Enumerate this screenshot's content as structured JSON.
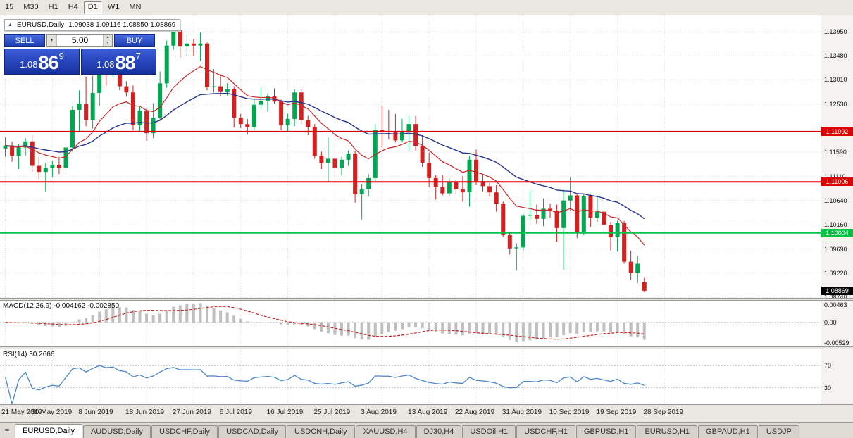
{
  "toolbar": {
    "timeframes": [
      "15",
      "M30",
      "H1",
      "H4",
      "D1",
      "W1",
      "MN"
    ],
    "active_timeframe": "D1"
  },
  "chart_header": {
    "symbol": "EURUSD,Daily",
    "ohlc": "1.09038 1.09116 1.08850 1.08869"
  },
  "trade_panel": {
    "sell_label": "SELL",
    "buy_label": "BUY",
    "volume": "5.00",
    "sell_price": {
      "big": "1.08",
      "mid": "86",
      "sup": "9"
    },
    "buy_price": {
      "big": "1.08",
      "mid": "88",
      "sup": "7"
    }
  },
  "indicators": {
    "macd_label": "MACD(12,26,9) -0.004162 -0.002850",
    "macd_scale": [
      "0.00463",
      "0.00",
      "-0.00529"
    ],
    "rsi_label": "RSI(14) 30.2666",
    "rsi_scale": [
      "70",
      "30"
    ]
  },
  "tabs": {
    "active": "EURUSD,Daily",
    "items": [
      "EURUSD,Daily",
      "AUDUSD,Daily",
      "USDCHF,Daily",
      "USDCAD,Daily",
      "USDCNH,Daily",
      "XAUUSD,H4",
      "DJ30,H4",
      "USDOil,H1",
      "USDCHF,H1",
      "GBPUSD,H1",
      "EURUSD,H1",
      "GBPAUD,H1",
      "USDJP"
    ]
  },
  "chart_data": {
    "type": "candlestick",
    "title": "EURUSD Daily",
    "ylim": [
      1.0873,
      1.1427
    ],
    "price_ticks": [
      "1.13950",
      "1.13480",
      "1.13010",
      "1.12530",
      "1.11590",
      "1.11110",
      "1.10640",
      "1.10160",
      "1.09690",
      "1.09220",
      "1.08740"
    ],
    "levels": [
      {
        "label": "1.11992",
        "color": "#dd0000",
        "line": true
      },
      {
        "label": "1.11006",
        "color": "#dd0000",
        "line": true
      },
      {
        "label": "1.10004",
        "color": "#00c244",
        "line": true
      },
      {
        "label": "1.08869",
        "color": "#000000",
        "line": false
      }
    ],
    "dates": [
      "21 May 2019",
      "30 May 2019",
      "8 Jun 2019",
      "18 Jun 2019",
      "27 Jun 2019",
      "6 Jul 2019",
      "16 Jul 2019",
      "25 Jul 2019",
      "3 Aug 2019",
      "13 Aug 2019",
      "22 Aug 2019",
      "31 Aug 2019",
      "10 Sep 2019",
      "19 Sep 2019",
      "28 Sep 2019"
    ],
    "up_color": "#00a651",
    "down_color": "#d62020",
    "ma_colors": {
      "fast": "#c42626",
      "slow": "#27348b"
    },
    "rsi_levels": [
      70,
      30
    ],
    "macd_ylim": [
      -0.0058,
      0.0052
    ],
    "candles": [
      [
        1.1166,
        1.1188,
        1.115,
        1.1172
      ],
      [
        1.1172,
        1.118,
        1.114,
        1.1152
      ],
      [
        1.1152,
        1.1174,
        1.1126,
        1.1168
      ],
      [
        1.1168,
        1.1186,
        1.1152,
        1.118
      ],
      [
        1.118,
        1.1192,
        1.112,
        1.1132
      ],
      [
        1.1132,
        1.115,
        1.1106,
        1.112
      ],
      [
        1.112,
        1.1138,
        1.1082,
        1.1128
      ],
      [
        1.1128,
        1.1142,
        1.111,
        1.1134
      ],
      [
        1.1134,
        1.115,
        1.1116,
        1.1128
      ],
      [
        1.1128,
        1.1176,
        1.1122,
        1.1168
      ],
      [
        1.1168,
        1.125,
        1.116,
        1.1242
      ],
      [
        1.1242,
        1.128,
        1.12,
        1.1254
      ],
      [
        1.1254,
        1.1307,
        1.121,
        1.1222
      ],
      [
        1.1222,
        1.1309,
        1.1205,
        1.1275
      ],
      [
        1.1275,
        1.1348,
        1.125,
        1.1334
      ],
      [
        1.1334,
        1.134,
        1.1289,
        1.1312
      ],
      [
        1.1312,
        1.1338,
        1.1305,
        1.1326
      ],
      [
        1.1326,
        1.1344,
        1.128,
        1.1288
      ],
      [
        1.1288,
        1.1298,
        1.1268,
        1.1276
      ],
      [
        1.1276,
        1.129,
        1.1202,
        1.1212
      ],
      [
        1.1212,
        1.1248,
        1.12,
        1.124
      ],
      [
        1.124,
        1.1244,
        1.1181,
        1.1196
      ],
      [
        1.1196,
        1.1255,
        1.1186,
        1.1226
      ],
      [
        1.1226,
        1.1317,
        1.1222,
        1.1294
      ],
      [
        1.1294,
        1.1378,
        1.1285,
        1.1368
      ],
      [
        1.1368,
        1.1406,
        1.136,
        1.1398
      ],
      [
        1.1398,
        1.1412,
        1.1344,
        1.1366
      ],
      [
        1.1366,
        1.139,
        1.1348,
        1.1372
      ],
      [
        1.1372,
        1.138,
        1.1348,
        1.1368
      ],
      [
        1.1368,
        1.1394,
        1.1338,
        1.1372
      ],
      [
        1.1372,
        1.1374,
        1.128,
        1.1286
      ],
      [
        1.1286,
        1.1322,
        1.1276,
        1.1288
      ],
      [
        1.1288,
        1.1312,
        1.1268,
        1.1278
      ],
      [
        1.1278,
        1.1294,
        1.127,
        1.1282
      ],
      [
        1.1282,
        1.1288,
        1.1207,
        1.1226
      ],
      [
        1.1226,
        1.1234,
        1.1206,
        1.1214
      ],
      [
        1.1214,
        1.1224,
        1.1193,
        1.1208
      ],
      [
        1.1208,
        1.1264,
        1.1202,
        1.1252
      ],
      [
        1.1252,
        1.1286,
        1.1244,
        1.126
      ],
      [
        1.126,
        1.1274,
        1.1238,
        1.1268
      ],
      [
        1.1268,
        1.1284,
        1.1254,
        1.1258
      ],
      [
        1.1258,
        1.1262,
        1.1202,
        1.1212
      ],
      [
        1.1212,
        1.1234,
        1.1198,
        1.1224
      ],
      [
        1.1224,
        1.1282,
        1.121,
        1.1276
      ],
      [
        1.1276,
        1.1282,
        1.1214,
        1.1222
      ],
      [
        1.1222,
        1.123,
        1.1192,
        1.1208
      ],
      [
        1.1208,
        1.1214,
        1.1146,
        1.1152
      ],
      [
        1.1152,
        1.116,
        1.1126,
        1.1138
      ],
      [
        1.1138,
        1.1188,
        1.1101,
        1.1146
      ],
      [
        1.1146,
        1.1152,
        1.1112,
        1.1128
      ],
      [
        1.1128,
        1.115,
        1.1113,
        1.1144
      ],
      [
        1.1144,
        1.1162,
        1.1132,
        1.1156
      ],
      [
        1.1156,
        1.1162,
        1.106,
        1.1076
      ],
      [
        1.1076,
        1.1096,
        1.1027,
        1.1086
      ],
      [
        1.1086,
        1.1116,
        1.1072,
        1.1108
      ],
      [
        1.1108,
        1.1214,
        1.1102,
        1.1202
      ],
      [
        1.1202,
        1.125,
        1.1168,
        1.12
      ],
      [
        1.12,
        1.1242,
        1.1184,
        1.1198
      ],
      [
        1.1198,
        1.1234,
        1.1178,
        1.1182
      ],
      [
        1.1182,
        1.1224,
        1.1178,
        1.12
      ],
      [
        1.12,
        1.123,
        1.1162,
        1.1214
      ],
      [
        1.1214,
        1.123,
        1.1162,
        1.117
      ],
      [
        1.117,
        1.1192,
        1.113,
        1.1138
      ],
      [
        1.1138,
        1.1158,
        1.109,
        1.1108
      ],
      [
        1.1108,
        1.1114,
        1.1066,
        1.109
      ],
      [
        1.109,
        1.1114,
        1.1074,
        1.1078
      ],
      [
        1.1078,
        1.1108,
        1.1072,
        1.11
      ],
      [
        1.11,
        1.1106,
        1.1076,
        1.1086
      ],
      [
        1.1086,
        1.1112,
        1.1062,
        1.108
      ],
      [
        1.108,
        1.1152,
        1.1052,
        1.1144
      ],
      [
        1.1144,
        1.1164,
        1.1094,
        1.1102
      ],
      [
        1.1102,
        1.1116,
        1.1082,
        1.1092
      ],
      [
        1.1092,
        1.1098,
        1.1072,
        1.108
      ],
      [
        1.108,
        1.1094,
        1.1042,
        1.1058
      ],
      [
        1.1058,
        1.1062,
        1.0992,
        1.0996
      ],
      [
        1.0996,
        1.1,
        1.0958,
        1.097
      ],
      [
        1.097,
        1.098,
        1.0926,
        1.0972
      ],
      [
        1.0972,
        1.1038,
        1.0966,
        1.1034
      ],
      [
        1.1034,
        1.1084,
        1.1024,
        1.1036
      ],
      [
        1.1036,
        1.1056,
        1.1018,
        1.1028
      ],
      [
        1.1028,
        1.1068,
        1.1014,
        1.1048
      ],
      [
        1.1048,
        1.1058,
        1.103,
        1.1044
      ],
      [
        1.1044,
        1.1056,
        1.0982,
        1.101
      ],
      [
        1.101,
        1.1087,
        1.0928,
        1.1064
      ],
      [
        1.1064,
        1.111,
        1.1044,
        1.1074
      ],
      [
        1.1074,
        1.1078,
        1.099,
        1.1002
      ],
      [
        1.1002,
        1.1076,
        1.0996,
        1.1072
      ],
      [
        1.1072,
        1.1076,
        1.1012,
        1.103
      ],
      [
        1.103,
        1.1074,
        1.1022,
        1.1042
      ],
      [
        1.1042,
        1.1068,
        1.1,
        1.1016
      ],
      [
        1.1016,
        1.1022,
        1.0966,
        1.0992
      ],
      [
        1.0992,
        1.1024,
        1.0964,
        1.102
      ],
      [
        1.102,
        1.1024,
        1.094,
        1.0944
      ],
      [
        1.0944,
        1.0966,
        1.0908,
        1.0922
      ],
      [
        1.0922,
        1.0956,
        1.0902,
        1.094
      ],
      [
        1.0904,
        1.0912,
        1.0885,
        1.0887
      ]
    ]
  }
}
